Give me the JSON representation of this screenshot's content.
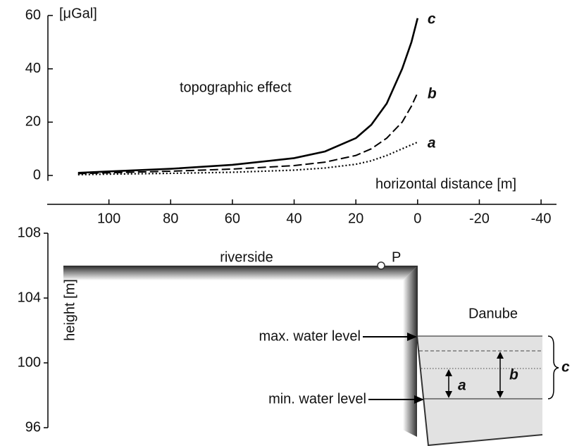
{
  "chart_data": {
    "type": "line",
    "y_unit_label": "[μGal]",
    "annotation": "topographic effect",
    "xlabel": "horizontal distance [m]",
    "x": [
      110,
      100,
      80,
      60,
      40,
      30,
      20,
      15,
      10,
      5,
      2,
      0
    ],
    "xlim": [
      120,
      -45
    ],
    "xticks": [
      100,
      80,
      60,
      40,
      20,
      0,
      -20,
      -40
    ],
    "ylim": [
      -2,
      60
    ],
    "yticks": [
      0,
      20,
      40,
      60
    ],
    "series": [
      {
        "name": "a",
        "color": "#000000",
        "style": "dotted",
        "values": [
          0.3,
          0.5,
          0.8,
          1.2,
          2,
          2.8,
          4.2,
          5.5,
          7.5,
          10,
          11.5,
          12.5
        ]
      },
      {
        "name": "b",
        "color": "#000000",
        "style": "dashed",
        "values": [
          0.7,
          1,
          1.6,
          2.4,
          3.7,
          5,
          7.5,
          10,
          14,
          20,
          26,
          31
        ]
      },
      {
        "name": "c",
        "color": "#000000",
        "style": "solid",
        "values": [
          1,
          1.5,
          2.5,
          4,
          6.5,
          9,
          14,
          19,
          27,
          40,
          50,
          59
        ]
      }
    ]
  },
  "cross_section": {
    "ylabel": "height [m]",
    "ylim": [
      96,
      108
    ],
    "yticks": [
      96,
      100,
      104,
      108
    ],
    "riverside": "riverside",
    "point": "P",
    "river": "Danube",
    "max_level": "max. water level",
    "min_level": "min. water level",
    "ranges": [
      "a",
      "b",
      "c"
    ]
  }
}
